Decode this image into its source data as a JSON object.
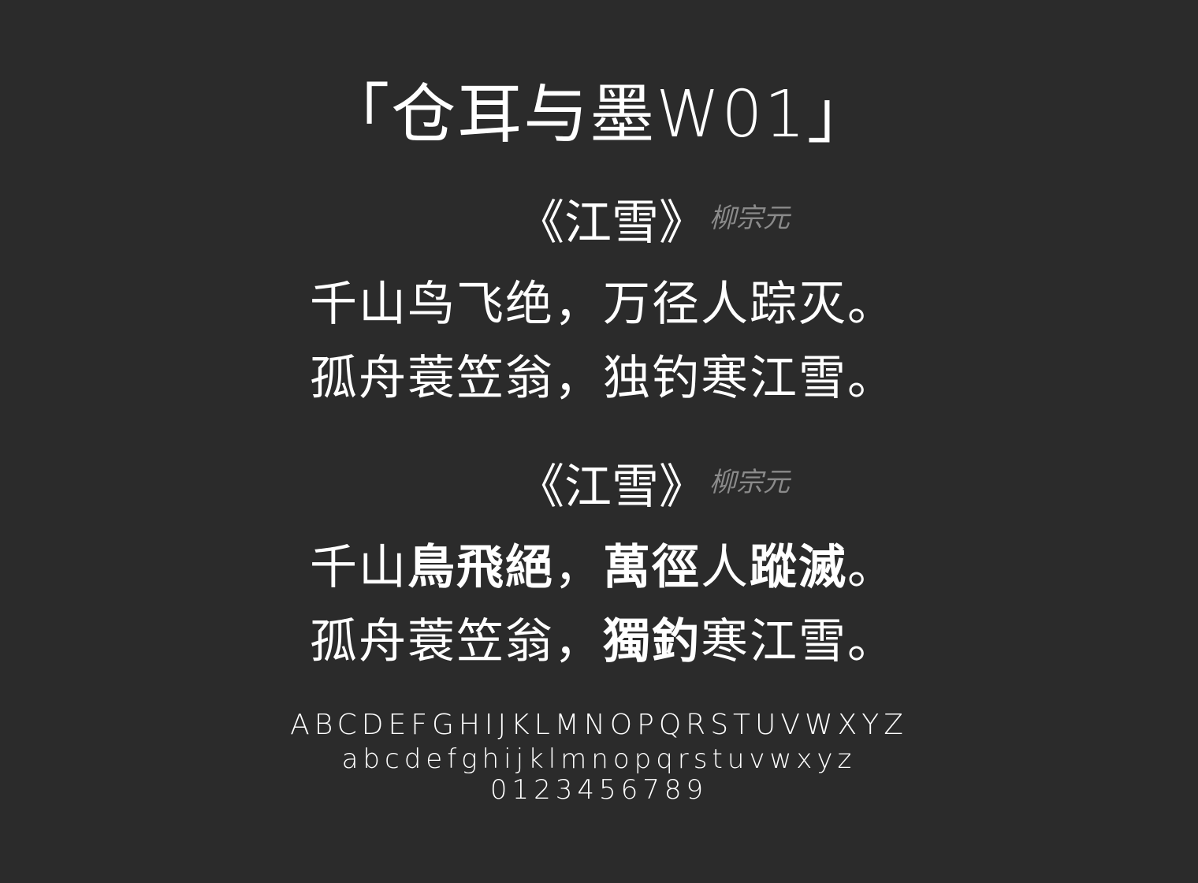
{
  "title": "「仓耳与墨W01」",
  "simplified": {
    "heading": "《江雪》",
    "author": "柳宗元",
    "line1": "千山鸟飞绝，万径人踪灭。",
    "line2": "孤舟蓑笠翁，独钓寒江雪。"
  },
  "traditional": {
    "heading": "《江雪》",
    "author": "柳宗元",
    "line1": {
      "a": "千山",
      "b": "鳥飛絕",
      "c": "，",
      "d": "萬徑",
      "e": "人",
      "f": "蹤滅",
      "g": "。"
    },
    "line2": {
      "a": "孤舟蓑笠翁，",
      "b": "獨釣",
      "c": "寒江雪。"
    }
  },
  "alphabet": {
    "uppercase": "ABCDEFGHIJKLMNOPQRSTUVWXYZ",
    "lowercase": "abcdefghijklmnopqrstuvwxyz",
    "digits": "0123456789"
  },
  "colors": {
    "background": "#2b2b2b",
    "text": "#ffffff",
    "author": "#8a8a8a"
  }
}
